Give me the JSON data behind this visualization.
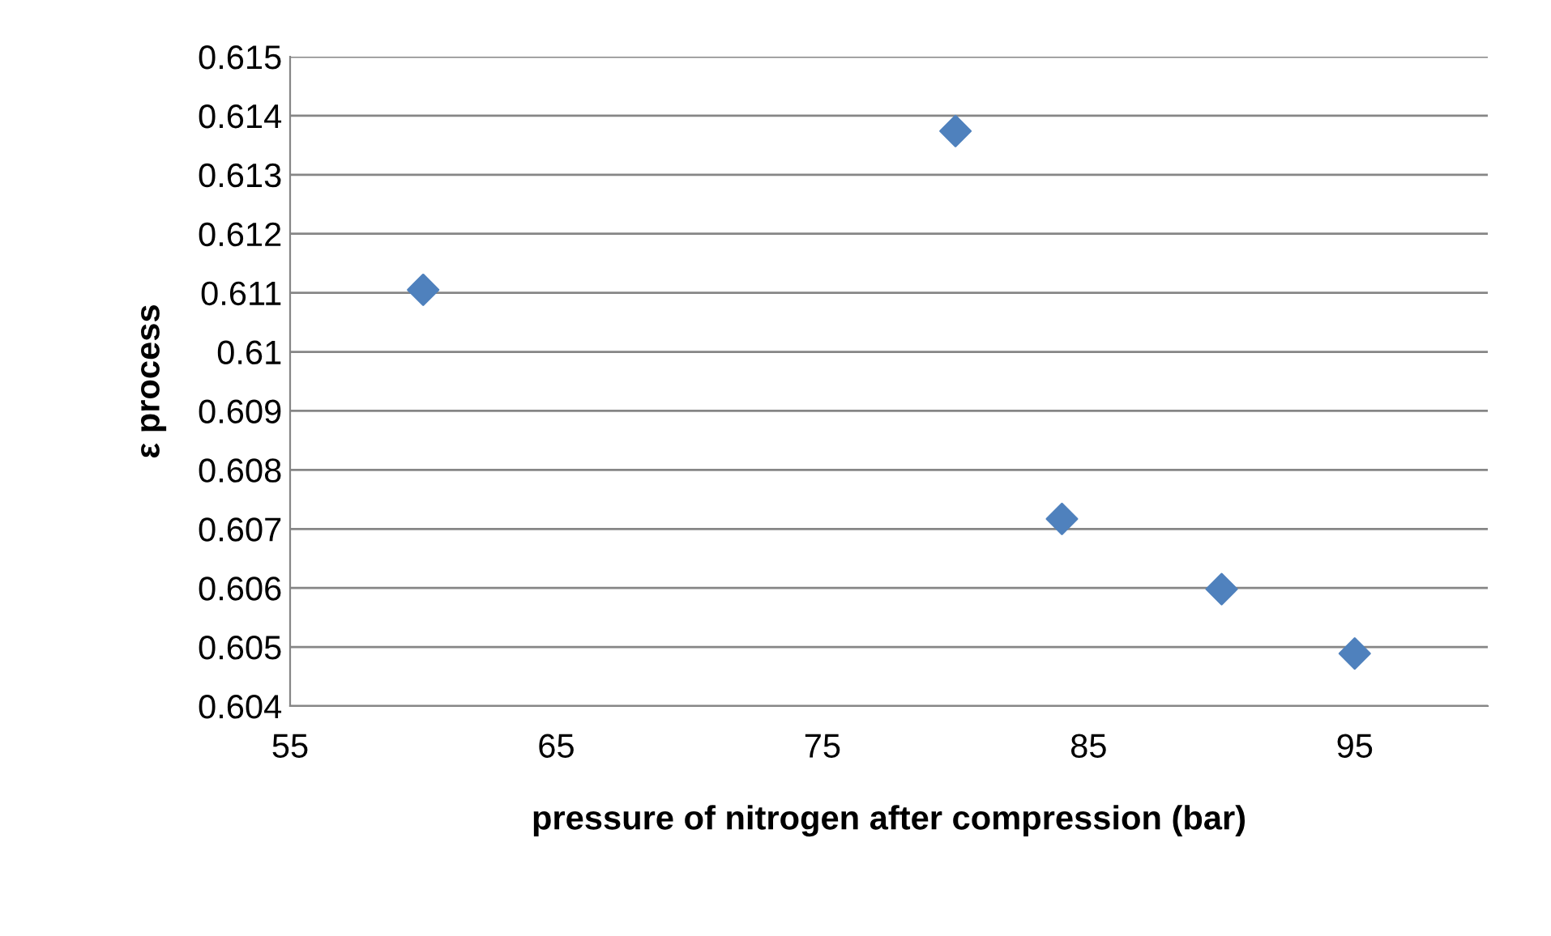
{
  "chart_data": {
    "type": "scatter",
    "xlabel": "pressure of nitrogen after compression (bar)",
    "ylabel": "ε process",
    "x": [
      60,
      80,
      84,
      90,
      95
    ],
    "series": [
      {
        "color": "#4f81bd",
        "values": [
          0.61105,
          0.61374,
          0.60717,
          0.60598,
          0.60489
        ]
      }
    ],
    "xlim": [
      55,
      100
    ],
    "xticks": [
      55,
      65,
      75,
      85,
      95
    ],
    "ylim": [
      0.604,
      0.615
    ],
    "yticks": [
      0.604,
      0.605,
      0.606,
      0.607,
      0.608,
      0.609,
      0.61,
      0.611,
      0.612,
      0.613,
      0.614,
      0.615
    ],
    "grid": "y",
    "marker": "diamond",
    "legend": false
  }
}
